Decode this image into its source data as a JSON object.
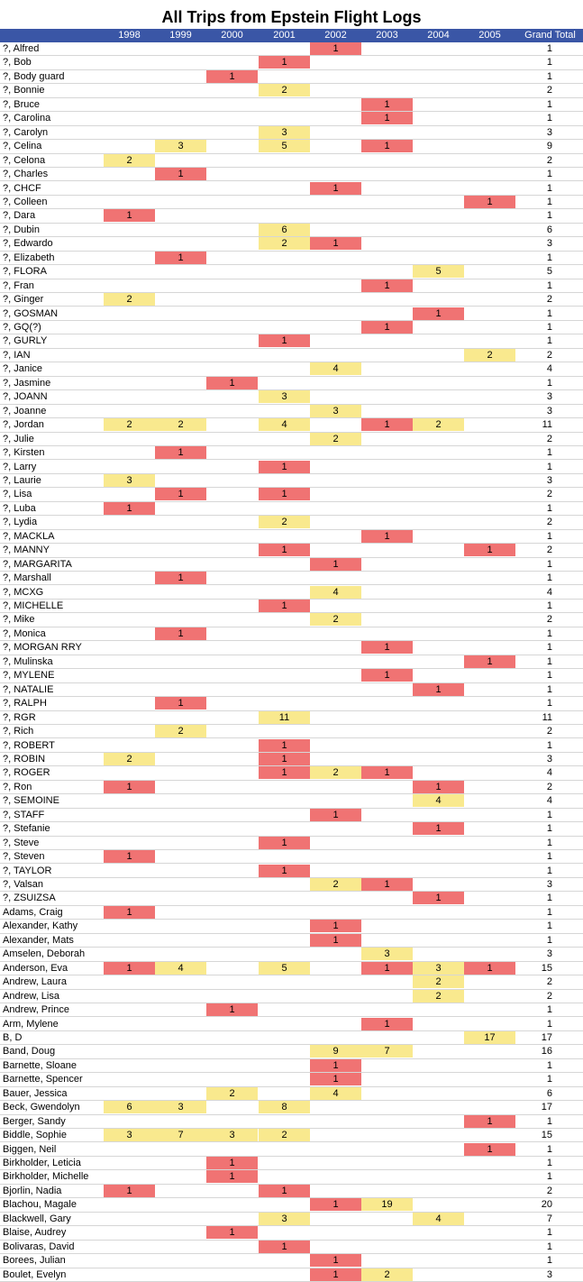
{
  "chart_data": {
    "type": "table",
    "title": "All Trips from Epstein Flight Logs",
    "columns": [
      "1998",
      "1999",
      "2000",
      "2001",
      "2002",
      "2003",
      "2004",
      "2005",
      "Grand Total"
    ],
    "colors": {
      "low": "#f07373",
      "high": "#f9e98e",
      "header": "#3a56a6"
    },
    "rows": [
      {
        "name": "?, Alfred",
        "vals": {
          "2002": 1
        },
        "total": 1
      },
      {
        "name": "?, Bob",
        "vals": {
          "2001": 1
        },
        "total": 1
      },
      {
        "name": "?, Body guard",
        "vals": {
          "2000": 1
        },
        "total": 1
      },
      {
        "name": "?, Bonnie",
        "vals": {
          "2001": 2
        },
        "total": 2
      },
      {
        "name": "?, Bruce",
        "vals": {
          "2003": 1
        },
        "total": 1
      },
      {
        "name": "?, Carolina",
        "vals": {
          "2003": 1
        },
        "total": 1
      },
      {
        "name": "?, Carolyn",
        "vals": {
          "2001": 3
        },
        "total": 3
      },
      {
        "name": "?, Celina",
        "vals": {
          "1999": 3,
          "2001": 5,
          "2003": 1
        },
        "total": 9
      },
      {
        "name": "?, Celona",
        "vals": {
          "1998": 2
        },
        "total": 2
      },
      {
        "name": "?, Charles",
        "vals": {
          "1999": 1
        },
        "total": 1
      },
      {
        "name": "?, CHCF",
        "vals": {
          "2002": 1
        },
        "total": 1
      },
      {
        "name": "?, Colleen",
        "vals": {
          "2005": 1
        },
        "total": 1
      },
      {
        "name": "?, Dara",
        "vals": {
          "1998": 1
        },
        "total": 1
      },
      {
        "name": "?, Dubin",
        "vals": {
          "2001": 6
        },
        "total": 6
      },
      {
        "name": "?, Edwardo",
        "vals": {
          "2001": 2,
          "2002": 1
        },
        "total": 3
      },
      {
        "name": "?, Elizabeth",
        "vals": {
          "1999": 1
        },
        "total": 1
      },
      {
        "name": "?, FLORA",
        "vals": {
          "2004": 5
        },
        "total": 5
      },
      {
        "name": "?, Fran",
        "vals": {
          "2003": 1
        },
        "total": 1
      },
      {
        "name": "?, Ginger",
        "vals": {
          "1998": 2
        },
        "total": 2
      },
      {
        "name": "?, GOSMAN",
        "vals": {
          "2004": 1
        },
        "total": 1
      },
      {
        "name": "?, GQ(?)",
        "vals": {
          "2003": 1
        },
        "total": 1
      },
      {
        "name": "?, GURLY",
        "vals": {
          "2001": 1
        },
        "total": 1
      },
      {
        "name": "?, IAN",
        "vals": {
          "2005": 2
        },
        "total": 2
      },
      {
        "name": "?, Janice",
        "vals": {
          "2002": 4
        },
        "total": 4
      },
      {
        "name": "?, Jasmine",
        "vals": {
          "2000": 1
        },
        "total": 1
      },
      {
        "name": "?, JOANN",
        "vals": {
          "2001": 3
        },
        "total": 3
      },
      {
        "name": "?, Joanne",
        "vals": {
          "2002": 3
        },
        "total": 3
      },
      {
        "name": "?, Jordan",
        "vals": {
          "1998": 2,
          "1999": 2,
          "2001": 4,
          "2003": 1,
          "2004": 2
        },
        "total": 11
      },
      {
        "name": "?, Julie",
        "vals": {
          "2002": 2
        },
        "total": 2
      },
      {
        "name": "?, Kirsten",
        "vals": {
          "1999": 1
        },
        "total": 1
      },
      {
        "name": "?, Larry",
        "vals": {
          "2001": 1
        },
        "total": 1
      },
      {
        "name": "?, Laurie",
        "vals": {
          "1998": 3
        },
        "total": 3
      },
      {
        "name": "?, Lisa",
        "vals": {
          "1999": 1,
          "2001": 1
        },
        "total": 2
      },
      {
        "name": "?, Luba",
        "vals": {
          "1998": 1
        },
        "total": 1
      },
      {
        "name": "?, Lydia",
        "vals": {
          "2001": 2
        },
        "total": 2
      },
      {
        "name": "?, MACKLA",
        "vals": {
          "2003": 1
        },
        "total": 1
      },
      {
        "name": "?, MANNY",
        "vals": {
          "2001": 1,
          "2005": 1
        },
        "total": 2
      },
      {
        "name": "?, MARGARITA",
        "vals": {
          "2002": 1
        },
        "total": 1
      },
      {
        "name": "?, Marshall",
        "vals": {
          "1999": 1
        },
        "total": 1
      },
      {
        "name": "?, MCXG",
        "vals": {
          "2002": 4
        },
        "total": 4
      },
      {
        "name": "?, MICHELLE",
        "vals": {
          "2001": 1
        },
        "total": 1
      },
      {
        "name": "?, Mike",
        "vals": {
          "2002": 2
        },
        "total": 2
      },
      {
        "name": "?, Monica",
        "vals": {
          "1999": 1
        },
        "total": 1
      },
      {
        "name": "?, MORGAN RRY",
        "vals": {
          "2003": 1
        },
        "total": 1
      },
      {
        "name": "?, Mulinska",
        "vals": {
          "2005": 1
        },
        "total": 1
      },
      {
        "name": "?, MYLENE",
        "vals": {
          "2003": 1
        },
        "total": 1
      },
      {
        "name": "?, NATALIE",
        "vals": {
          "2004": 1
        },
        "total": 1
      },
      {
        "name": "?, RALPH",
        "vals": {
          "1999": 1
        },
        "total": 1
      },
      {
        "name": "?, RGR",
        "vals": {
          "2001": 11
        },
        "total": 11
      },
      {
        "name": "?, Rich",
        "vals": {
          "1999": 2
        },
        "total": 2
      },
      {
        "name": "?, ROBERT",
        "vals": {
          "2001": 1
        },
        "total": 1
      },
      {
        "name": "?, ROBIN",
        "vals": {
          "1998": 2,
          "2001": 1
        },
        "total": 3
      },
      {
        "name": "?, ROGER",
        "vals": {
          "2001": 1,
          "2002": 2,
          "2003": 1
        },
        "total": 4
      },
      {
        "name": "?, Ron",
        "vals": {
          "1998": 1,
          "2004": 1
        },
        "total": 2
      },
      {
        "name": "?, SEMOINE",
        "vals": {
          "2004": 4
        },
        "total": 4
      },
      {
        "name": "?, STAFF",
        "vals": {
          "2002": 1
        },
        "total": 1
      },
      {
        "name": "?, Stefanie",
        "vals": {
          "2004": 1
        },
        "total": 1
      },
      {
        "name": "?, Steve",
        "vals": {
          "2001": 1
        },
        "total": 1
      },
      {
        "name": "?, Steven",
        "vals": {
          "1998": 1
        },
        "total": 1
      },
      {
        "name": "?, TAYLOR",
        "vals": {
          "2001": 1
        },
        "total": 1
      },
      {
        "name": "?, Valsan",
        "vals": {
          "2002": 2,
          "2003": 1
        },
        "total": 3
      },
      {
        "name": "?, ZSUIZSA",
        "vals": {
          "2004": 1
        },
        "total": 1
      },
      {
        "name": "Adams, Craig",
        "vals": {
          "1998": 1
        },
        "total": 1
      },
      {
        "name": "Alexander, Kathy",
        "vals": {
          "2002": 1
        },
        "total": 1
      },
      {
        "name": "Alexander, Mats",
        "vals": {
          "2002": 1
        },
        "total": 1
      },
      {
        "name": "Amselen, Deborah",
        "vals": {
          "2003": 3
        },
        "total": 3
      },
      {
        "name": "Anderson, Eva",
        "vals": {
          "1998": 1,
          "1999": 4,
          "2001": 5,
          "2003": 1,
          "2004": 3,
          "2005": 1
        },
        "total": 15
      },
      {
        "name": "Andrew, Laura",
        "vals": {
          "2004": 2
        },
        "total": 2
      },
      {
        "name": "Andrew, Lisa",
        "vals": {
          "2004": 2
        },
        "total": 2
      },
      {
        "name": "Andrew, Prince",
        "vals": {
          "2000": 1
        },
        "total": 1
      },
      {
        "name": "Arm, Mylene",
        "vals": {
          "2003": 1
        },
        "total": 1
      },
      {
        "name": "B, D",
        "vals": {
          "2005": 17
        },
        "total": 17
      },
      {
        "name": "Band, Doug",
        "vals": {
          "2002": 9,
          "2003": 7
        },
        "total": 16
      },
      {
        "name": "Barnette, Sloane",
        "vals": {
          "2002": 1
        },
        "total": 1
      },
      {
        "name": "Barnette, Spencer",
        "vals": {
          "2002": 1
        },
        "total": 1
      },
      {
        "name": "Bauer, Jessica",
        "vals": {
          "2000": 2,
          "2002": 4
        },
        "total": 6
      },
      {
        "name": "Beck, Gwendolyn",
        "vals": {
          "1998": 6,
          "1999": 3,
          "2001": 8
        },
        "total": 17
      },
      {
        "name": "Berger, Sandy",
        "vals": {
          "2005": 1
        },
        "total": 1
      },
      {
        "name": "Biddle, Sophie",
        "vals": {
          "1998": 3,
          "1999": 7,
          "2000": 3,
          "2001": 2
        },
        "total": 15
      },
      {
        "name": "Biggen, Neil",
        "vals": {
          "2005": 1
        },
        "total": 1
      },
      {
        "name": "Birkholder, Leticia",
        "vals": {
          "2000": 1
        },
        "total": 1
      },
      {
        "name": "Birkholder, Michelle",
        "vals": {
          "2000": 1
        },
        "total": 1
      },
      {
        "name": "Bjorlin, Nadia",
        "vals": {
          "1998": 1,
          "2001": 1
        },
        "total": 2
      },
      {
        "name": "Blachou, Magale",
        "vals": {
          "2002": 1,
          "2003": 19
        },
        "total": 20
      },
      {
        "name": "Blackwell, Gary",
        "vals": {
          "2001": 3,
          "2004": 4
        },
        "total": 7
      },
      {
        "name": "Blaise, Audrey",
        "vals": {
          "2000": 1
        },
        "total": 1
      },
      {
        "name": "Bolivaras, David",
        "vals": {
          "2001": 1
        },
        "total": 1
      },
      {
        "name": "Borees, Julian",
        "vals": {
          "2002": 1
        },
        "total": 1
      },
      {
        "name": "Boulet, Evelyn",
        "vals": {
          "2002": 1,
          "2003": 2
        },
        "total": 3
      }
    ]
  }
}
